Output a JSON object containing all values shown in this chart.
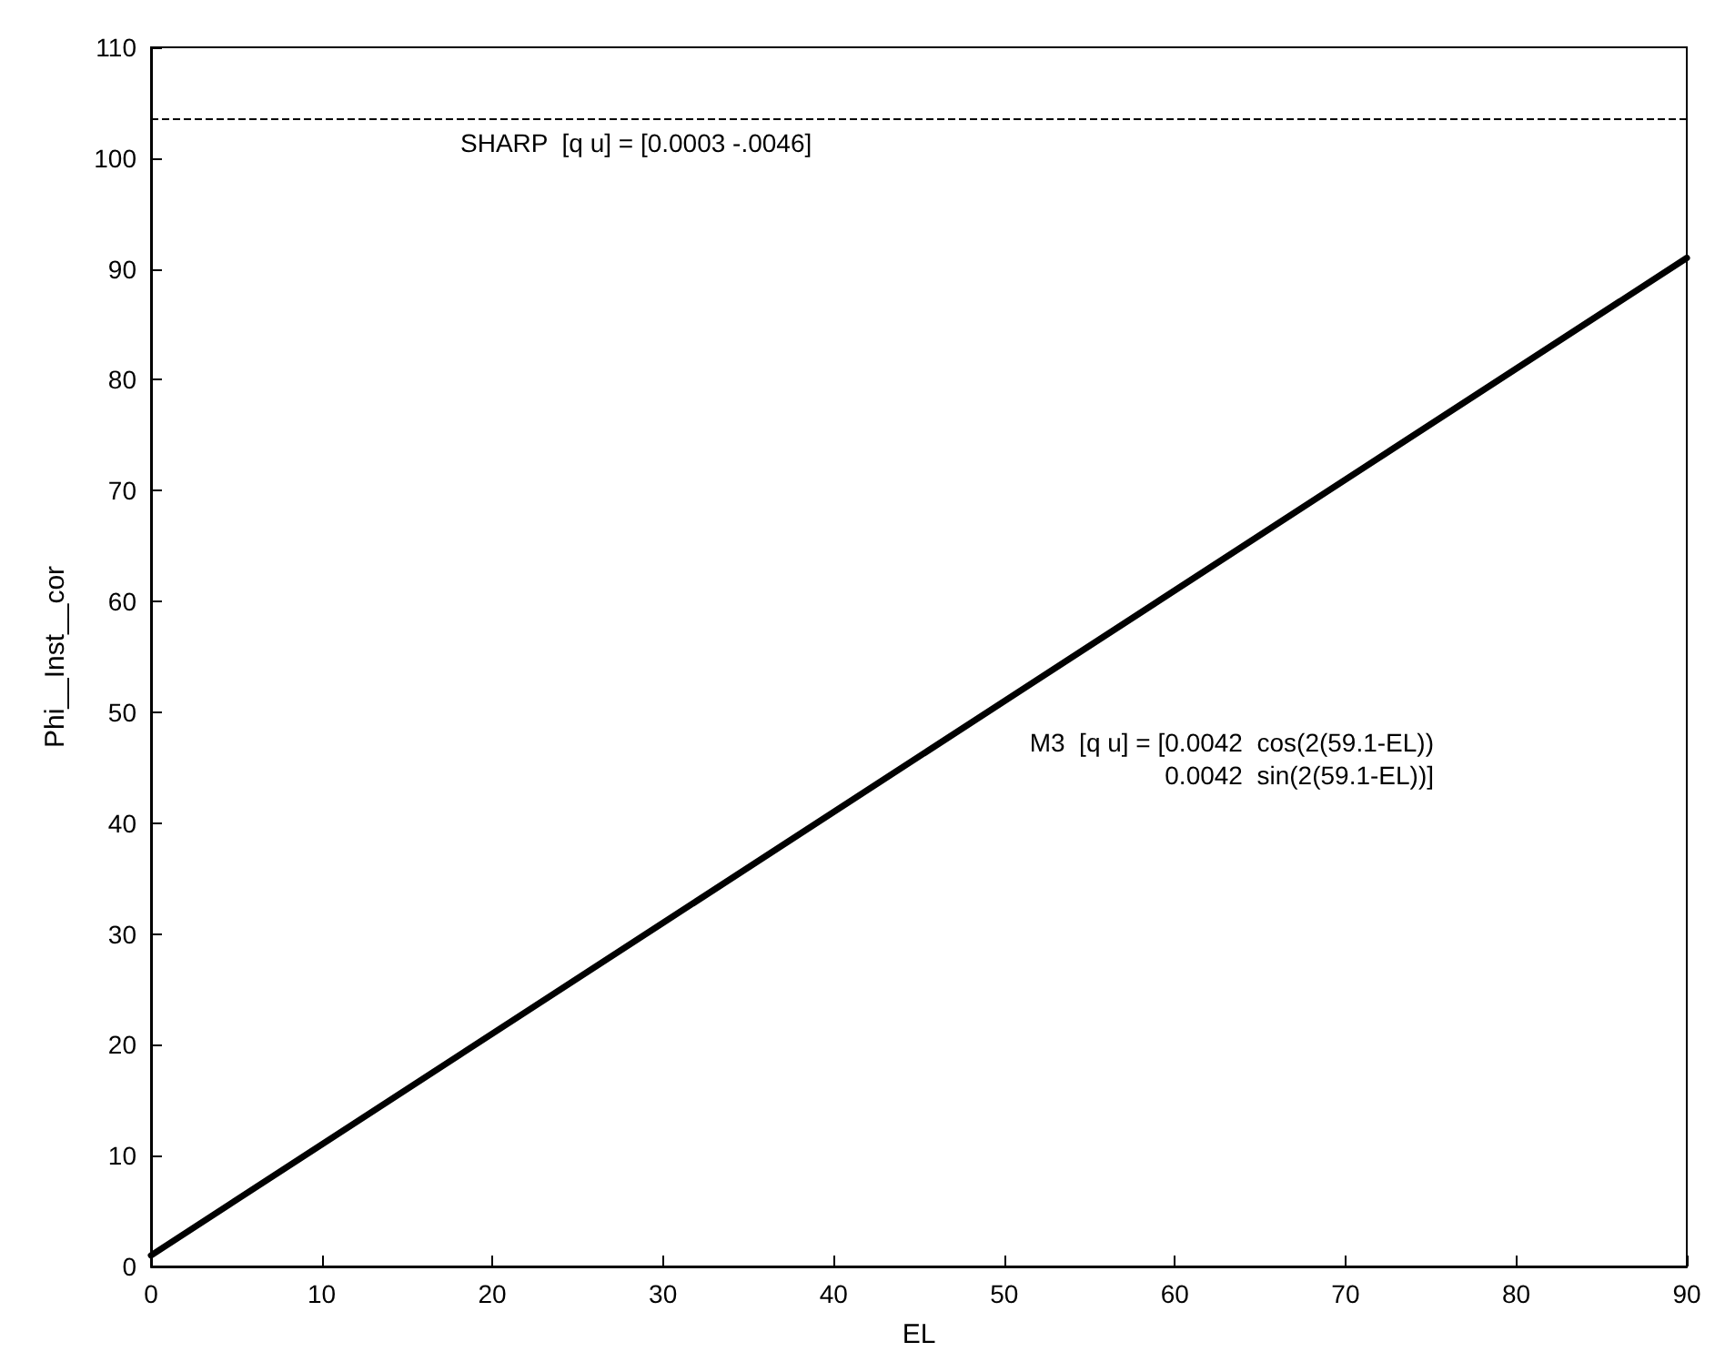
{
  "chart_data": {
    "type": "line",
    "xlabel": "EL",
    "ylabel": "Phi__Inst__cor",
    "x": [
      0,
      90
    ],
    "series": [
      {
        "color": "#000000",
        "values": [
          1,
          91
        ]
      }
    ],
    "xlim": [
      0,
      90
    ],
    "xticks": [
      0,
      10,
      20,
      30,
      40,
      50,
      60,
      70,
      80,
      90
    ],
    "ylim": [
      0,
      110
    ],
    "yticks": [
      0,
      10,
      20,
      30,
      40,
      50,
      60,
      70,
      80,
      90,
      100,
      110
    ],
    "grid": false,
    "marker": "none",
    "line_style": "solid",
    "ref_lines": [
      {
        "axis": "y",
        "value": 103.5,
        "color": "#000000",
        "line_style": "dashed",
        "label": "SHARP  [q u] = [0.0003 -.0046]"
      }
    ],
    "annotations": [
      "M3  [q u] = [0.0042  cos(2(59.1-EL))",
      "0.0042  sin(2(59.1-EL))]"
    ]
  }
}
